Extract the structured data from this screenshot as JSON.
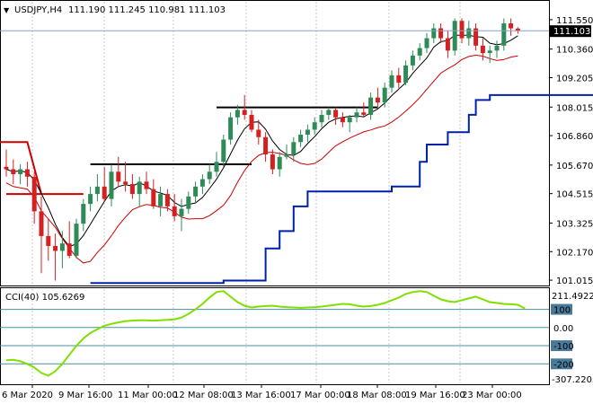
{
  "header": {
    "symbol": "USDJPY,H4",
    "ohlc": "111.190 111.245 110.981 111.103"
  },
  "price_tag": {
    "value": "111.103",
    "bg": "#000000",
    "fg": "#ffffff"
  },
  "price_axis": {
    "ticks": [
      "111.550",
      "110.360",
      "109.205",
      "108.015",
      "106.860",
      "105.670",
      "104.515",
      "103.325",
      "102.170",
      "101.015"
    ]
  },
  "cci_panel": {
    "label": "CCI(40) 105.6269",
    "level_labels": [
      "100",
      "0.00",
      "-100",
      "-200"
    ],
    "top_value": "211.4922",
    "bottom_value": "-307.2203"
  },
  "time_axis": {
    "labels": [
      "6 Mar 2020",
      "9 Mar 16:00",
      "11 Mar 00:00",
      "12 Mar 08:00",
      "13 Mar 16:00",
      "17 Mar 00:00",
      "18 Mar 08:00",
      "19 Mar 16:00",
      "23 Mar 00:00"
    ]
  },
  "colors": {
    "bull": "#2e8b57",
    "bear": "#d42020",
    "envelope_upper": "#000000",
    "envelope_lower": "#cc0000",
    "trail": "#0022aa",
    "level": "#000000",
    "cci": "#7fe000",
    "cci_level": "#4a8fa0",
    "grid": "#c8c8c8"
  },
  "chart_data": {
    "type": "candlestick",
    "symbol": "USDJPY",
    "timeframe": "H4",
    "price_range": [
      100.8,
      112.2
    ],
    "candles": [
      {
        "o": 105.6,
        "h": 106.3,
        "l": 105.2,
        "c": 105.5
      },
      {
        "o": 105.5,
        "h": 105.9,
        "l": 104.9,
        "c": 105.3
      },
      {
        "o": 105.3,
        "h": 105.7,
        "l": 104.9,
        "c": 105.5
      },
      {
        "o": 105.5,
        "h": 105.8,
        "l": 104.8,
        "c": 105.2
      },
      {
        "o": 105.2,
        "h": 105.4,
        "l": 103.3,
        "c": 103.8
      },
      {
        "o": 103.8,
        "h": 104.4,
        "l": 101.3,
        "c": 102.8
      },
      {
        "o": 102.8,
        "h": 103.5,
        "l": 101.8,
        "c": 102.4
      },
      {
        "o": 102.4,
        "h": 102.9,
        "l": 101.0,
        "c": 102.2
      },
      {
        "o": 102.2,
        "h": 103.0,
        "l": 101.5,
        "c": 102.5
      },
      {
        "o": 102.5,
        "h": 103.4,
        "l": 101.9,
        "c": 102.0
      },
      {
        "o": 102.0,
        "h": 103.5,
        "l": 101.9,
        "c": 103.3
      },
      {
        "o": 103.3,
        "h": 104.3,
        "l": 103.0,
        "c": 104.1
      },
      {
        "o": 104.1,
        "h": 104.8,
        "l": 103.8,
        "c": 104.5
      },
      {
        "o": 104.5,
        "h": 105.3,
        "l": 104.2,
        "c": 104.8
      },
      {
        "o": 104.8,
        "h": 105.6,
        "l": 104.2,
        "c": 104.3
      },
      {
        "o": 104.3,
        "h": 105.7,
        "l": 104.0,
        "c": 105.4
      },
      {
        "o": 105.4,
        "h": 106.0,
        "l": 104.8,
        "c": 105.0
      },
      {
        "o": 105.0,
        "h": 105.8,
        "l": 104.6,
        "c": 104.9
      },
      {
        "o": 104.9,
        "h": 105.3,
        "l": 104.3,
        "c": 104.5
      },
      {
        "o": 104.5,
        "h": 105.2,
        "l": 104.0,
        "c": 105.0
      },
      {
        "o": 105.0,
        "h": 105.4,
        "l": 104.5,
        "c": 104.7
      },
      {
        "o": 104.7,
        "h": 105.1,
        "l": 103.9,
        "c": 104.0
      },
      {
        "o": 104.0,
        "h": 104.8,
        "l": 103.6,
        "c": 104.5
      },
      {
        "o": 104.5,
        "h": 104.7,
        "l": 103.8,
        "c": 104.0
      },
      {
        "o": 104.0,
        "h": 104.5,
        "l": 103.4,
        "c": 103.6
      },
      {
        "o": 103.6,
        "h": 104.3,
        "l": 103.0,
        "c": 103.9
      },
      {
        "o": 103.9,
        "h": 104.6,
        "l": 103.7,
        "c": 104.4
      },
      {
        "o": 104.4,
        "h": 105.0,
        "l": 104.1,
        "c": 104.8
      },
      {
        "o": 104.8,
        "h": 105.3,
        "l": 104.5,
        "c": 105.1
      },
      {
        "o": 105.1,
        "h": 105.7,
        "l": 104.9,
        "c": 105.4
      },
      {
        "o": 105.4,
        "h": 106.2,
        "l": 105.2,
        "c": 105.8
      },
      {
        "o": 105.8,
        "h": 106.9,
        "l": 105.6,
        "c": 106.7
      },
      {
        "o": 106.7,
        "h": 107.8,
        "l": 106.5,
        "c": 107.6
      },
      {
        "o": 107.6,
        "h": 108.1,
        "l": 107.3,
        "c": 107.9
      },
      {
        "o": 107.9,
        "h": 108.5,
        "l": 107.5,
        "c": 107.7
      },
      {
        "o": 107.7,
        "h": 107.9,
        "l": 107.0,
        "c": 107.1
      },
      {
        "o": 107.1,
        "h": 107.5,
        "l": 106.5,
        "c": 106.8
      },
      {
        "o": 106.8,
        "h": 107.0,
        "l": 105.8,
        "c": 106.1
      },
      {
        "o": 106.1,
        "h": 106.3,
        "l": 105.3,
        "c": 105.5
      },
      {
        "o": 105.5,
        "h": 106.2,
        "l": 105.2,
        "c": 106.0
      },
      {
        "o": 106.0,
        "h": 106.5,
        "l": 105.9,
        "c": 106.1
      },
      {
        "o": 106.1,
        "h": 106.8,
        "l": 105.8,
        "c": 106.6
      },
      {
        "o": 106.6,
        "h": 107.1,
        "l": 106.4,
        "c": 106.9
      },
      {
        "o": 106.9,
        "h": 107.3,
        "l": 106.6,
        "c": 107.1
      },
      {
        "o": 107.1,
        "h": 107.6,
        "l": 106.9,
        "c": 107.4
      },
      {
        "o": 107.4,
        "h": 107.9,
        "l": 107.2,
        "c": 107.7
      },
      {
        "o": 107.7,
        "h": 108.0,
        "l": 107.5,
        "c": 107.9
      },
      {
        "o": 107.9,
        "h": 108.0,
        "l": 107.3,
        "c": 107.6
      },
      {
        "o": 107.6,
        "h": 107.8,
        "l": 107.2,
        "c": 107.4
      },
      {
        "o": 107.4,
        "h": 107.7,
        "l": 107.0,
        "c": 107.6
      },
      {
        "o": 107.6,
        "h": 108.0,
        "l": 107.4,
        "c": 107.8
      },
      {
        "o": 107.8,
        "h": 108.2,
        "l": 107.6,
        "c": 107.7
      },
      {
        "o": 107.7,
        "h": 108.6,
        "l": 107.5,
        "c": 108.4
      },
      {
        "o": 108.4,
        "h": 108.8,
        "l": 108.0,
        "c": 108.2
      },
      {
        "o": 108.2,
        "h": 109.0,
        "l": 108.0,
        "c": 108.8
      },
      {
        "o": 108.8,
        "h": 109.5,
        "l": 108.6,
        "c": 109.3
      },
      {
        "o": 109.3,
        "h": 109.6,
        "l": 108.8,
        "c": 109.0
      },
      {
        "o": 109.0,
        "h": 109.9,
        "l": 108.9,
        "c": 109.7
      },
      {
        "o": 109.7,
        "h": 110.3,
        "l": 109.5,
        "c": 110.1
      },
      {
        "o": 110.1,
        "h": 110.6,
        "l": 109.9,
        "c": 110.4
      },
      {
        "o": 110.4,
        "h": 111.0,
        "l": 110.2,
        "c": 110.8
      },
      {
        "o": 110.8,
        "h": 111.4,
        "l": 110.6,
        "c": 111.2
      },
      {
        "o": 111.2,
        "h": 111.4,
        "l": 110.6,
        "c": 110.8
      },
      {
        "o": 110.8,
        "h": 111.1,
        "l": 110.0,
        "c": 110.3
      },
      {
        "o": 110.3,
        "h": 111.6,
        "l": 110.1,
        "c": 111.5
      },
      {
        "o": 111.5,
        "h": 111.6,
        "l": 110.6,
        "c": 110.8
      },
      {
        "o": 110.8,
        "h": 111.5,
        "l": 110.5,
        "c": 111.2
      },
      {
        "o": 111.2,
        "h": 111.4,
        "l": 110.3,
        "c": 110.5
      },
      {
        "o": 110.5,
        "h": 110.8,
        "l": 109.9,
        "c": 110.2
      },
      {
        "o": 110.2,
        "h": 110.5,
        "l": 109.8,
        "c": 110.3
      },
      {
        "o": 110.3,
        "h": 110.7,
        "l": 110.0,
        "c": 110.5
      },
      {
        "o": 110.5,
        "h": 111.6,
        "l": 110.3,
        "c": 111.4
      },
      {
        "o": 111.4,
        "h": 111.6,
        "l": 110.9,
        "c": 111.2
      },
      {
        "o": 111.19,
        "h": 111.245,
        "l": 110.981,
        "c": 111.103
      }
    ],
    "trail_line": [
      [
        0,
        100.9
      ],
      [
        19,
        100.9
      ],
      [
        19,
        101.0
      ],
      [
        25,
        101.0
      ],
      [
        25,
        102.3
      ],
      [
        27,
        102.3
      ],
      [
        27,
        103.0
      ],
      [
        29,
        103.0
      ],
      [
        29,
        104.0
      ],
      [
        31,
        104.0
      ],
      [
        31,
        104.6
      ],
      [
        43,
        104.6
      ],
      [
        43,
        104.8
      ],
      [
        47,
        104.8
      ],
      [
        47,
        105.8
      ],
      [
        48,
        105.8
      ],
      [
        48,
        106.5
      ],
      [
        51,
        106.5
      ],
      [
        51,
        107.0
      ],
      [
        54,
        107.0
      ],
      [
        54,
        107.7
      ],
      [
        55,
        107.7
      ],
      [
        55,
        108.3
      ],
      [
        57,
        108.3
      ],
      [
        57,
        108.5
      ],
      [
        72,
        108.5
      ]
    ],
    "horizontal_levels": [
      {
        "y": 104.5,
        "x_start": 0,
        "x_end": 11,
        "color": "#cc0000"
      },
      {
        "y": 105.7,
        "x_start": 12,
        "x_end": 35,
        "color": "#000000"
      },
      {
        "y": 108.0,
        "x_start": 30,
        "x_end": 53,
        "color": "#000000"
      }
    ],
    "cci": {
      "name": "CCI(40)",
      "current": 105.6269,
      "range": [
        -307.2203,
        211.4922
      ],
      "levels": [
        100,
        0,
        -100,
        -200
      ],
      "values": [
        -180,
        -178,
        -185,
        -200,
        -220,
        -250,
        -265,
        -240,
        -200,
        -150,
        -100,
        -60,
        -30,
        -10,
        10,
        20,
        28,
        35,
        38,
        40,
        40,
        38,
        40,
        42,
        45,
        55,
        75,
        100,
        130,
        165,
        195,
        200,
        170,
        140,
        120,
        110,
        115,
        118,
        120,
        115,
        112,
        110,
        108,
        110,
        112,
        115,
        120,
        125,
        130,
        128,
        120,
        115,
        118,
        125,
        135,
        150,
        165,
        185,
        195,
        200,
        195,
        175,
        155,
        145,
        140,
        150,
        160,
        170,
        155,
        140,
        135,
        130,
        128,
        125,
        105
      ]
    }
  }
}
